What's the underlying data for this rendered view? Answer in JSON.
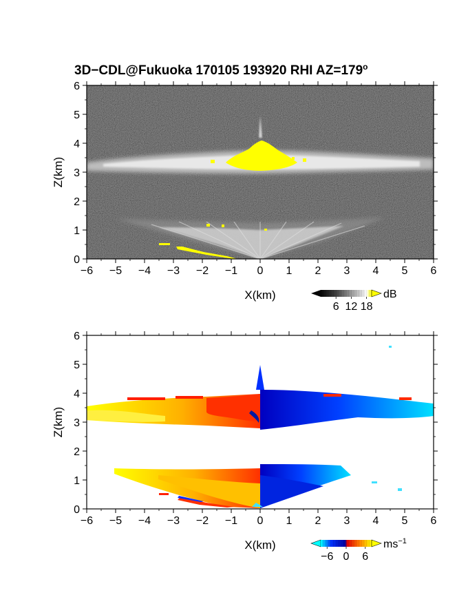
{
  "figure": {
    "title_main": "3D−CDL@Fukuoka 170105 193920 RHI AZ=179",
    "title_deg": "o"
  },
  "chart_data": [
    {
      "type": "heatmap",
      "name": "reflectivity",
      "xlabel": "X(km)",
      "ylabel": "Z(km)",
      "xlim": [
        -6,
        6
      ],
      "ylim": [
        0,
        6
      ],
      "xticks": [
        "−6",
        "−5",
        "−4",
        "−3",
        "−2",
        "−1",
        "0",
        "1",
        "2",
        "3",
        "4",
        "5",
        "6"
      ],
      "yticks": [
        "0",
        "1",
        "2",
        "3",
        "4",
        "5",
        "6"
      ],
      "colorbar": {
        "unit": "dB",
        "ticks": [
          "6",
          "12",
          "18"
        ],
        "tick_values": [
          6,
          12,
          18
        ],
        "range": [
          0,
          20
        ],
        "colors": [
          "#050505",
          "#404040",
          "#8a8a8a",
          "#d0d0d0",
          "#ffffff",
          "#ffff00"
        ]
      },
      "features": [
        {
          "label": "layer",
          "x": [
            -6,
            6
          ],
          "z": [
            3.0,
            3.7
          ]
        },
        {
          "label": "high-echo core",
          "x": [
            -1.0,
            1.0
          ],
          "z": [
            3.1,
            4.1
          ]
        },
        {
          "label": "lower fan",
          "x": [
            -4.0,
            4.0
          ],
          "z": [
            0,
            1.4
          ]
        },
        {
          "label": "ground clutter",
          "x": [
            -3.5,
            -0.7
          ],
          "z": [
            0,
            0.55
          ]
        }
      ],
      "grid": false
    },
    {
      "type": "heatmap",
      "name": "doppler velocity",
      "xlabel": "X(km)",
      "ylabel": "Z(km)",
      "xlim": [
        -6,
        6
      ],
      "ylim": [
        0,
        6
      ],
      "xticks": [
        "−6",
        "−5",
        "−4",
        "−3",
        "−2",
        "−1",
        "0",
        "1",
        "2",
        "3",
        "4",
        "5",
        "6"
      ],
      "yticks": [
        "0",
        "1",
        "2",
        "3",
        "4",
        "5",
        "6"
      ],
      "colorbar": {
        "unit": "ms",
        "unit_exp": "−1",
        "ticks": [
          "−6",
          "0",
          "6"
        ],
        "tick_values": [
          -6,
          0,
          6
        ],
        "range": [
          -8,
          8
        ],
        "colors": [
          "#00ffff",
          "#0033ff",
          "#0000a0",
          "#e00000",
          "#ff7700",
          "#ffff00"
        ]
      },
      "features": [
        {
          "label": "upper layer",
          "x": [
            -6,
            6
          ],
          "z": [
            2.9,
            3.9
          ]
        },
        {
          "label": "lower fan",
          "x": [
            -5.0,
            4.0
          ],
          "z": [
            0,
            1.5
          ]
        }
      ],
      "grid": false
    }
  ]
}
